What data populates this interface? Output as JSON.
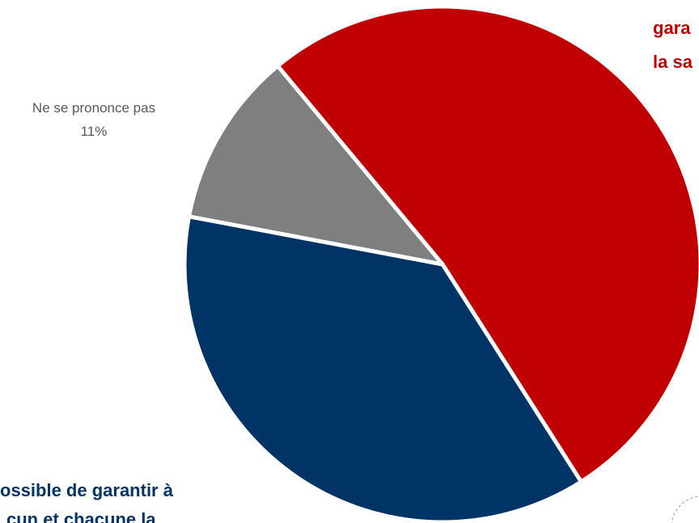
{
  "chart_data": {
    "type": "pie",
    "categories": [
      [
        "gara",
        "la sa"
      ],
      [
        "ossible de garantir à",
        "cun et chacune la"
      ],
      [
        "Ne se prononce pas"
      ]
    ],
    "values": [
      52,
      37,
      11
    ],
    "value_labels": [
      null,
      null,
      "11%"
    ],
    "colors": [
      "#c00000",
      "#003366",
      "#7f7f7f"
    ]
  }
}
